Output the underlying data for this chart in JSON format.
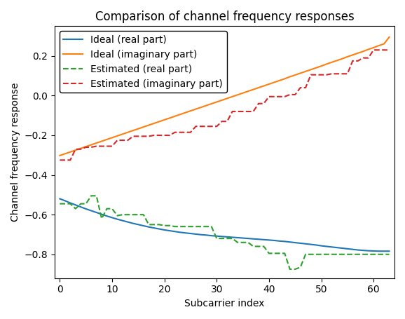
{
  "title": "Comparison of channel frequency responses",
  "xlabel": "Subcarrier index",
  "ylabel": "Channel frequency response",
  "legend": [
    {
      "label": "Ideal (real part)",
      "color": "#1f77b4",
      "linestyle": "-"
    },
    {
      "label": "Ideal (imaginary part)",
      "color": "#ff7f0e",
      "linestyle": "-"
    },
    {
      "label": "Estimated (real part)",
      "color": "#2ca02c",
      "linestyle": "--"
    },
    {
      "label": "Estimated (imaginary part)",
      "color": "#d62728",
      "linestyle": "--"
    }
  ],
  "ideal_real_x": [
    0,
    1,
    2,
    3,
    4,
    5,
    6,
    7,
    8,
    9,
    10,
    11,
    12,
    13,
    14,
    15,
    16,
    17,
    18,
    19,
    20,
    21,
    22,
    23,
    24,
    25,
    26,
    27,
    28,
    29,
    30,
    31,
    32,
    33,
    34,
    35,
    36,
    37,
    38,
    39,
    40,
    41,
    42,
    43,
    44,
    45,
    46,
    47,
    48,
    49,
    50,
    51,
    52,
    53,
    54,
    55,
    56,
    57,
    58,
    59,
    60,
    61,
    62,
    63
  ],
  "ideal_real_y": [
    -0.52,
    -0.53,
    -0.541,
    -0.551,
    -0.561,
    -0.571,
    -0.58,
    -0.589,
    -0.598,
    -0.607,
    -0.615,
    -0.623,
    -0.63,
    -0.637,
    -0.644,
    -0.65,
    -0.656,
    -0.662,
    -0.667,
    -0.672,
    -0.677,
    -0.681,
    -0.685,
    -0.689,
    -0.692,
    -0.695,
    -0.698,
    -0.701,
    -0.703,
    -0.706,
    -0.708,
    -0.71,
    -0.712,
    -0.714,
    -0.716,
    -0.718,
    -0.72,
    -0.722,
    -0.724,
    -0.726,
    -0.728,
    -0.73,
    -0.733,
    -0.735,
    -0.738,
    -0.741,
    -0.744,
    -0.747,
    -0.75,
    -0.753,
    -0.757,
    -0.76,
    -0.763,
    -0.766,
    -0.769,
    -0.772,
    -0.775,
    -0.778,
    -0.78,
    -0.782,
    -0.783,
    -0.784,
    -0.784,
    -0.784
  ],
  "ideal_imag_x": [
    0,
    1,
    2,
    3,
    4,
    5,
    6,
    7,
    8,
    9,
    10,
    11,
    12,
    13,
    14,
    15,
    16,
    17,
    18,
    19,
    20,
    21,
    22,
    23,
    24,
    25,
    26,
    27,
    28,
    29,
    30,
    31,
    32,
    33,
    34,
    35,
    36,
    37,
    38,
    39,
    40,
    41,
    42,
    43,
    44,
    45,
    46,
    47,
    48,
    49,
    50,
    51,
    52,
    53,
    54,
    55,
    56,
    57,
    58,
    59,
    60,
    61,
    62,
    63
  ],
  "ideal_imag_y": [
    -0.302,
    -0.293,
    -0.284,
    -0.275,
    -0.266,
    -0.257,
    -0.248,
    -0.239,
    -0.23,
    -0.221,
    -0.212,
    -0.203,
    -0.194,
    -0.185,
    -0.176,
    -0.167,
    -0.158,
    -0.149,
    -0.14,
    -0.131,
    -0.122,
    -0.113,
    -0.104,
    -0.095,
    -0.086,
    -0.077,
    -0.068,
    -0.059,
    -0.05,
    -0.041,
    -0.032,
    -0.023,
    -0.014,
    -0.005,
    0.004,
    0.013,
    0.022,
    0.031,
    0.04,
    0.049,
    0.058,
    0.067,
    0.076,
    0.085,
    0.095,
    0.104,
    0.113,
    0.122,
    0.131,
    0.14,
    0.149,
    0.159,
    0.168,
    0.177,
    0.186,
    0.196,
    0.205,
    0.214,
    0.223,
    0.233,
    0.242,
    0.252,
    0.261,
    0.295
  ],
  "est_real_x": [
    0,
    1,
    2,
    3,
    4,
    5,
    6,
    7,
    8,
    9,
    10,
    11,
    12,
    13,
    14,
    15,
    16,
    17,
    18,
    19,
    20,
    21,
    22,
    23,
    24,
    25,
    26,
    27,
    28,
    29,
    30,
    31,
    32,
    33,
    34,
    35,
    36,
    37,
    38,
    39,
    40,
    41,
    42,
    43,
    44,
    45,
    46,
    47,
    48,
    49,
    50,
    51,
    52,
    53,
    54,
    55,
    56,
    57,
    58,
    59,
    60,
    61,
    62,
    63
  ],
  "est_real_y": [
    -0.545,
    -0.545,
    -0.545,
    -0.57,
    -0.545,
    -0.545,
    -0.505,
    -0.505,
    -0.62,
    -0.57,
    -0.57,
    -0.605,
    -0.6,
    -0.6,
    -0.6,
    -0.6,
    -0.6,
    -0.65,
    -0.65,
    -0.65,
    -0.655,
    -0.655,
    -0.66,
    -0.66,
    -0.66,
    -0.66,
    -0.66,
    -0.66,
    -0.66,
    -0.66,
    -0.72,
    -0.72,
    -0.72,
    -0.72,
    -0.74,
    -0.74,
    -0.74,
    -0.76,
    -0.76,
    -0.76,
    -0.795,
    -0.795,
    -0.795,
    -0.795,
    -0.875,
    -0.875,
    -0.865,
    -0.8,
    -0.8,
    -0.8,
    -0.8,
    -0.8,
    -0.8,
    -0.8,
    -0.8,
    -0.8,
    -0.8,
    -0.8,
    -0.8,
    -0.8,
    -0.8,
    -0.8,
    -0.8,
    -0.8
  ],
  "est_imag_x": [
    0,
    1,
    2,
    3,
    4,
    5,
    6,
    7,
    8,
    9,
    10,
    11,
    12,
    13,
    14,
    15,
    16,
    17,
    18,
    19,
    20,
    21,
    22,
    23,
    24,
    25,
    26,
    27,
    28,
    29,
    30,
    31,
    32,
    33,
    34,
    35,
    36,
    37,
    38,
    39,
    40,
    41,
    42,
    43,
    44,
    45,
    46,
    47,
    48,
    49,
    50,
    51,
    52,
    53,
    54,
    55,
    56,
    57,
    58,
    59,
    60,
    61,
    62,
    63
  ],
  "est_imag_y": [
    -0.325,
    -0.325,
    -0.325,
    -0.27,
    -0.27,
    -0.26,
    -0.26,
    -0.255,
    -0.255,
    -0.255,
    -0.255,
    -0.225,
    -0.225,
    -0.225,
    -0.205,
    -0.205,
    -0.205,
    -0.205,
    -0.2,
    -0.2,
    -0.2,
    -0.2,
    -0.185,
    -0.185,
    -0.185,
    -0.185,
    -0.155,
    -0.155,
    -0.155,
    -0.155,
    -0.155,
    -0.13,
    -0.13,
    -0.08,
    -0.08,
    -0.08,
    -0.08,
    -0.08,
    -0.04,
    -0.04,
    -0.005,
    -0.005,
    -0.005,
    -0.005,
    0.005,
    0.005,
    0.04,
    0.04,
    0.105,
    0.105,
    0.105,
    0.105,
    0.11,
    0.11,
    0.11,
    0.11,
    0.175,
    0.175,
    0.19,
    0.19,
    0.23,
    0.23,
    0.23,
    0.23
  ],
  "xlim": [
    -1,
    64
  ],
  "ylim": [
    -0.92,
    0.35
  ],
  "figsize": [
    5.78,
    4.55
  ],
  "dpi": 100
}
